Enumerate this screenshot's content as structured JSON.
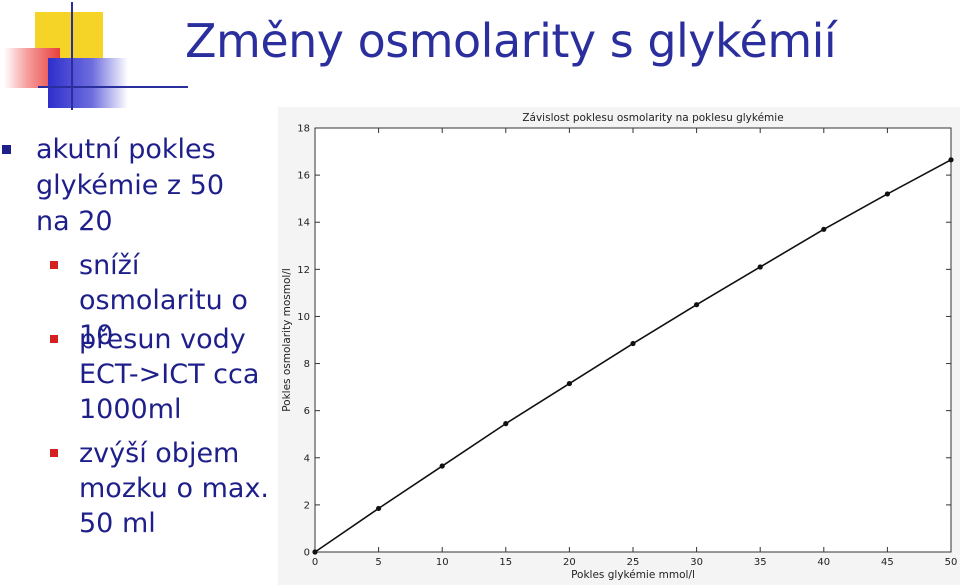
{
  "slide": {
    "title": "Změny osmolarity s glykémií",
    "bullets": [
      {
        "text": "akutní pokles glykémie z 50 na 20",
        "subbullets": [
          "sníží osmolaritu o 10",
          "přesun vody ECT->ICT cca 1000ml",
          "zvýší objem mozku o max. 50 ml"
        ]
      }
    ],
    "colors": {
      "title": "#2b2f9e",
      "text": "#1e1f8a",
      "sub_bullet": "#d42020"
    }
  },
  "chart_data": {
    "type": "line",
    "title": "Závislost poklesu osmolarity na poklesu glykémie",
    "xlabel": "Pokles glykémie mmol/l",
    "ylabel": "Pokles osmolarity mosmol/l",
    "xlim": [
      0,
      50
    ],
    "ylim": [
      0,
      18
    ],
    "xticks": [
      0,
      5,
      10,
      15,
      20,
      25,
      30,
      35,
      40,
      45,
      50
    ],
    "yticks": [
      0,
      2,
      4,
      6,
      8,
      10,
      12,
      14,
      16,
      18
    ],
    "grid": false,
    "series": [
      {
        "x": [
          0,
          5,
          10,
          15,
          20,
          25,
          30,
          35,
          40,
          45,
          50
        ],
        "y": [
          0,
          1.85,
          3.65,
          5.45,
          7.15,
          8.85,
          10.5,
          12.1,
          13.7,
          15.2,
          16.65
        ]
      }
    ]
  }
}
